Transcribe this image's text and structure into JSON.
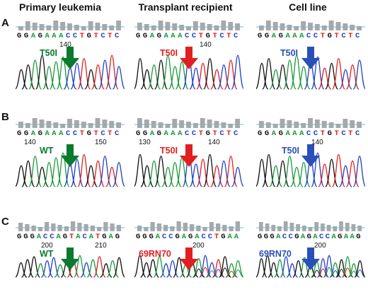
{
  "headers": {
    "primary": "Primary leukemia",
    "transplant": "Transplant recipient",
    "cell_line": "Cell line"
  },
  "rows": [
    {
      "letter": "A",
      "panels": [
        {
          "seq": "GGAGAAACCTGTCTC",
          "positions": [
            "140"
          ],
          "label": "T50I",
          "color": "#0a7a2e"
        },
        {
          "seq": "GGAGAAACCTGTCTC",
          "positions": [
            "140"
          ],
          "label": "T50I",
          "color": "#e02020"
        },
        {
          "seq": "GGAGAAACCTGTCTC",
          "positions": [],
          "label": "T50I",
          "color": "#2a4fb8"
        }
      ]
    },
    {
      "letter": "B",
      "panels": [
        {
          "seq": "GGAGAAACCTGTCTC",
          "positions": [
            "140",
            "150"
          ],
          "label": "WT",
          "color": "#0a7a2e"
        },
        {
          "seq": "GGAGAAACCTGTCTC",
          "positions": [
            "130",
            "140"
          ],
          "label": "T50I",
          "color": "#e02020"
        },
        {
          "seq": "GGAGAAACCTGTCTC",
          "positions": [
            "140"
          ],
          "label": "T50I",
          "color": "#2a4fb8"
        }
      ]
    },
    {
      "letter": "C",
      "panels": [
        {
          "seq": "GGGACCAGTACATGAG",
          "positions": [
            "200",
            "210"
          ],
          "label": "WT",
          "color": "#0a7a2e"
        },
        {
          "seq": "GGGACCGAGACCTGAA",
          "positions": [
            "200"
          ],
          "label": "69RN70",
          "color": "#e02020"
        },
        {
          "seq": "GGGACCGAGACCAGAAG",
          "positions": [
            "200"
          ],
          "label": "69RN70",
          "color": "#2a4fb8"
        }
      ]
    }
  ],
  "colors": {
    "A": "#1a9a3a",
    "C": "#2040c8",
    "G": "#111111",
    "T": "#e02020"
  }
}
